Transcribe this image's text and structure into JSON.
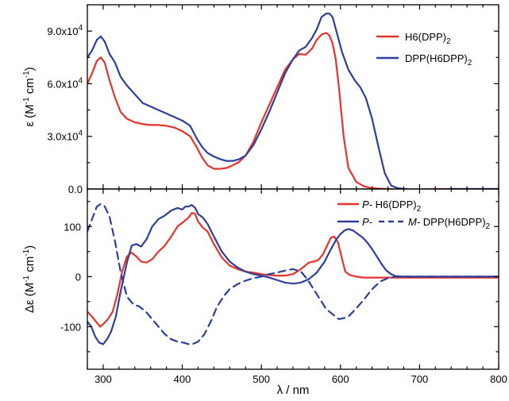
{
  "chart_data": [
    {
      "type": "line",
      "panel": "top",
      "xlabel": "",
      "ylabel": "ε (M⁻¹ cm⁻¹)",
      "xlim": [
        280,
        800
      ],
      "ylim": [
        0,
        105000
      ],
      "xticks": [
        300,
        400,
        500,
        600,
        700,
        800
      ],
      "yticks": [
        0,
        30000,
        60000,
        90000
      ],
      "ytick_labels": [
        "0.0",
        "3.0x10⁴",
        "6.0x10⁴",
        "9.0x10⁴"
      ],
      "legend_placement": "top-right",
      "series": [
        {
          "name": "H6(DPP)₂",
          "color": "#e8322c",
          "dash": "solid",
          "x": [
            280,
            286,
            292,
            297,
            302,
            308,
            315,
            322,
            330,
            340,
            350,
            360,
            370,
            380,
            390,
            400,
            410,
            418,
            425,
            432,
            440,
            448,
            456,
            464,
            472,
            480,
            490,
            500,
            510,
            520,
            530,
            540,
            548,
            556,
            564,
            570,
            576,
            582,
            586,
            590,
            594,
            598,
            604,
            610,
            620,
            630,
            640,
            650,
            660,
            670,
            680,
            700,
            720,
            740,
            760,
            780,
            800
          ],
          "y": [
            60000,
            66000,
            73000,
            75000,
            72000,
            62000,
            52000,
            44000,
            40000,
            38000,
            37000,
            36500,
            36500,
            36000,
            35000,
            33000,
            30000,
            24000,
            18000,
            13500,
            11500,
            11500,
            12000,
            13500,
            15500,
            19000,
            27000,
            38000,
            48000,
            58000,
            68000,
            74000,
            77000,
            76500,
            80000,
            85000,
            88000,
            89000,
            87500,
            83000,
            74000,
            58000,
            30000,
            12000,
            4000,
            1500,
            500,
            200,
            0,
            -300,
            -500,
            -300,
            0,
            0,
            0,
            0,
            0
          ]
        },
        {
          "name": "DPP(H6DPP)₂",
          "color": "#2e3f9a",
          "dash": "solid",
          "x": [
            280,
            286,
            292,
            297,
            302,
            308,
            315,
            322,
            330,
            340,
            350,
            360,
            370,
            380,
            390,
            400,
            410,
            418,
            425,
            432,
            440,
            448,
            456,
            464,
            472,
            480,
            490,
            500,
            510,
            520,
            530,
            540,
            548,
            556,
            564,
            570,
            576,
            582,
            586,
            590,
            596,
            602,
            610,
            618,
            625,
            632,
            640,
            648,
            656,
            664,
            672,
            680,
            700,
            720,
            740,
            760,
            780,
            800
          ],
          "y": [
            75000,
            79000,
            85000,
            87000,
            84000,
            77000,
            72000,
            64000,
            59000,
            54000,
            49000,
            47000,
            45000,
            43000,
            41000,
            39000,
            36000,
            29000,
            24000,
            20500,
            18500,
            17000,
            16000,
            16000,
            17000,
            19000,
            25000,
            34000,
            44000,
            55000,
            66000,
            74000,
            79000,
            81000,
            86000,
            91000,
            98000,
            100000,
            100000,
            98000,
            88000,
            78000,
            68000,
            62000,
            58000,
            52000,
            40000,
            24000,
            9000,
            2000,
            500,
            0,
            -700,
            -500,
            0,
            0,
            0,
            0
          ]
        }
      ]
    },
    {
      "type": "line",
      "panel": "bottom",
      "xlabel": "λ / nm",
      "ylabel": "Δε (M⁻¹ cm⁻¹)",
      "xlim": [
        280,
        800
      ],
      "ylim": [
        -185,
        175
      ],
      "xticks": [
        300,
        400,
        500,
        600,
        700,
        800
      ],
      "xtick_labels": [
        "300",
        "400",
        "500",
        "600",
        "700",
        "800"
      ],
      "yticks": [
        -100,
        0,
        100
      ],
      "ytick_labels": [
        "-100",
        "0",
        "100"
      ],
      "legend_placement": "top-right",
      "series": [
        {
          "name": "P- H6(DPP)₂",
          "color": "#e8322c",
          "dash": "solid",
          "x": [
            280,
            286,
            292,
            296,
            300,
            306,
            312,
            318,
            324,
            330,
            336,
            342,
            348,
            355,
            362,
            370,
            378,
            386,
            394,
            402,
            408,
            412,
            416,
            420,
            426,
            432,
            440,
            450,
            460,
            470,
            480,
            490,
            500,
            510,
            520,
            530,
            540,
            550,
            560,
            566,
            572,
            578,
            584,
            588,
            592,
            597,
            602,
            606,
            612,
            620,
            630,
            640,
            650,
            660,
            670,
            680,
            700,
            720,
            740,
            760,
            780,
            800
          ],
          "y": [
            -70,
            -80,
            -92,
            -100,
            -95,
            -85,
            -70,
            -35,
            10,
            40,
            48,
            40,
            30,
            28,
            35,
            50,
            62,
            80,
            100,
            110,
            118,
            127,
            126,
            110,
            98,
            90,
            65,
            38,
            22,
            15,
            10,
            8,
            5,
            3,
            2,
            2,
            5,
            15,
            28,
            30,
            33,
            45,
            65,
            78,
            80,
            68,
            35,
            10,
            3,
            0,
            -2,
            -2,
            -2,
            -2,
            -2,
            -2,
            -2,
            -2,
            -2,
            -2,
            -2,
            -2
          ]
        },
        {
          "name": "P- DPP(H6DPP)₂",
          "color": "#2e3f9a",
          "dash": "solid",
          "x": [
            280,
            285,
            290,
            295,
            300,
            305,
            310,
            316,
            322,
            330,
            336,
            342,
            348,
            355,
            362,
            370,
            378,
            386,
            394,
            400,
            404,
            408,
            412,
            416,
            420,
            426,
            432,
            440,
            450,
            460,
            470,
            480,
            490,
            500,
            510,
            520,
            530,
            540,
            550,
            560,
            570,
            580,
            588,
            595,
            600,
            605,
            610,
            616,
            622,
            628,
            634,
            640,
            646,
            652,
            658,
            664,
            670,
            680,
            700,
            720,
            740,
            760,
            780,
            800
          ],
          "y": [
            -90,
            -100,
            -120,
            -132,
            -135,
            -125,
            -110,
            -80,
            -30,
            28,
            62,
            65,
            60,
            75,
            100,
            115,
            122,
            132,
            137,
            134,
            140,
            140,
            143,
            138,
            125,
            118,
            105,
            80,
            50,
            30,
            18,
            10,
            5,
            2,
            -2,
            -7,
            -12,
            -14,
            -12,
            -5,
            8,
            30,
            55,
            75,
            85,
            92,
            95,
            92,
            85,
            78,
            68,
            55,
            40,
            25,
            12,
            5,
            1,
            0,
            0,
            0,
            0,
            0,
            0,
            0
          ]
        },
        {
          "name": "M- DPP(H6DPP)₂",
          "color": "#2e3f9a",
          "dash": "dashed",
          "x": [
            280,
            286,
            292,
            297,
            302,
            308,
            315,
            322,
            330,
            338,
            346,
            354,
            362,
            370,
            378,
            386,
            394,
            402,
            408,
            414,
            420,
            428,
            436,
            444,
            452,
            460,
            470,
            480,
            490,
            500,
            510,
            520,
            530,
            540,
            550,
            558,
            566,
            574,
            582,
            590,
            598,
            604,
            610,
            616,
            622,
            630,
            640,
            650,
            660,
            670,
            680,
            700,
            720,
            740,
            760,
            780,
            800
          ],
          "y": [
            90,
            115,
            140,
            145,
            140,
            120,
            70,
            10,
            -40,
            -55,
            -60,
            -70,
            -85,
            -100,
            -115,
            -125,
            -130,
            -132,
            -135,
            -134,
            -130,
            -115,
            -90,
            -60,
            -40,
            -25,
            -15,
            -8,
            -3,
            0,
            5,
            8,
            12,
            15,
            10,
            -5,
            -25,
            -45,
            -65,
            -75,
            -85,
            -83,
            -80,
            -70,
            -60,
            -45,
            -25,
            -10,
            -3,
            0,
            0,
            0,
            0,
            0,
            0,
            0,
            0
          ]
        }
      ]
    }
  ],
  "legends": {
    "top": {
      "items": [
        {
          "label_main": "H6(DPP)",
          "label_sub": "2",
          "color": "#e8322c"
        },
        {
          "label_main": "DPP(H6DPP)",
          "label_sub": "2",
          "color": "#2e3f9a"
        }
      ]
    },
    "bottom": {
      "row1": {
        "prefix": "P-",
        "label_main": " H6(DPP)",
        "label_sub": "2",
        "color": "#e8322c"
      },
      "row2": {
        "prefix_left": "P-",
        "prefix_right": "M-",
        "label_main": " DPP(H6DPP)",
        "label_sub": "2",
        "color": "#2e3f9a"
      }
    }
  },
  "axis_titles": {
    "top_y": {
      "main": "ε (M",
      "sup1": "-1",
      "mid": " cm",
      "sup2": "-1",
      "end": ")"
    },
    "bottom_y": {
      "main": "Δε (M",
      "sup1": "-1",
      "mid": " cm",
      "sup2": "-1",
      "end": ")"
    },
    "x": "λ / nm"
  },
  "top_ytick_labels": [
    {
      "base": "0.0",
      "exp": ""
    },
    {
      "base": "3.0x10",
      "exp": "4"
    },
    {
      "base": "6.0x10",
      "exp": "4"
    },
    {
      "base": "9.0x10",
      "exp": "4"
    }
  ]
}
